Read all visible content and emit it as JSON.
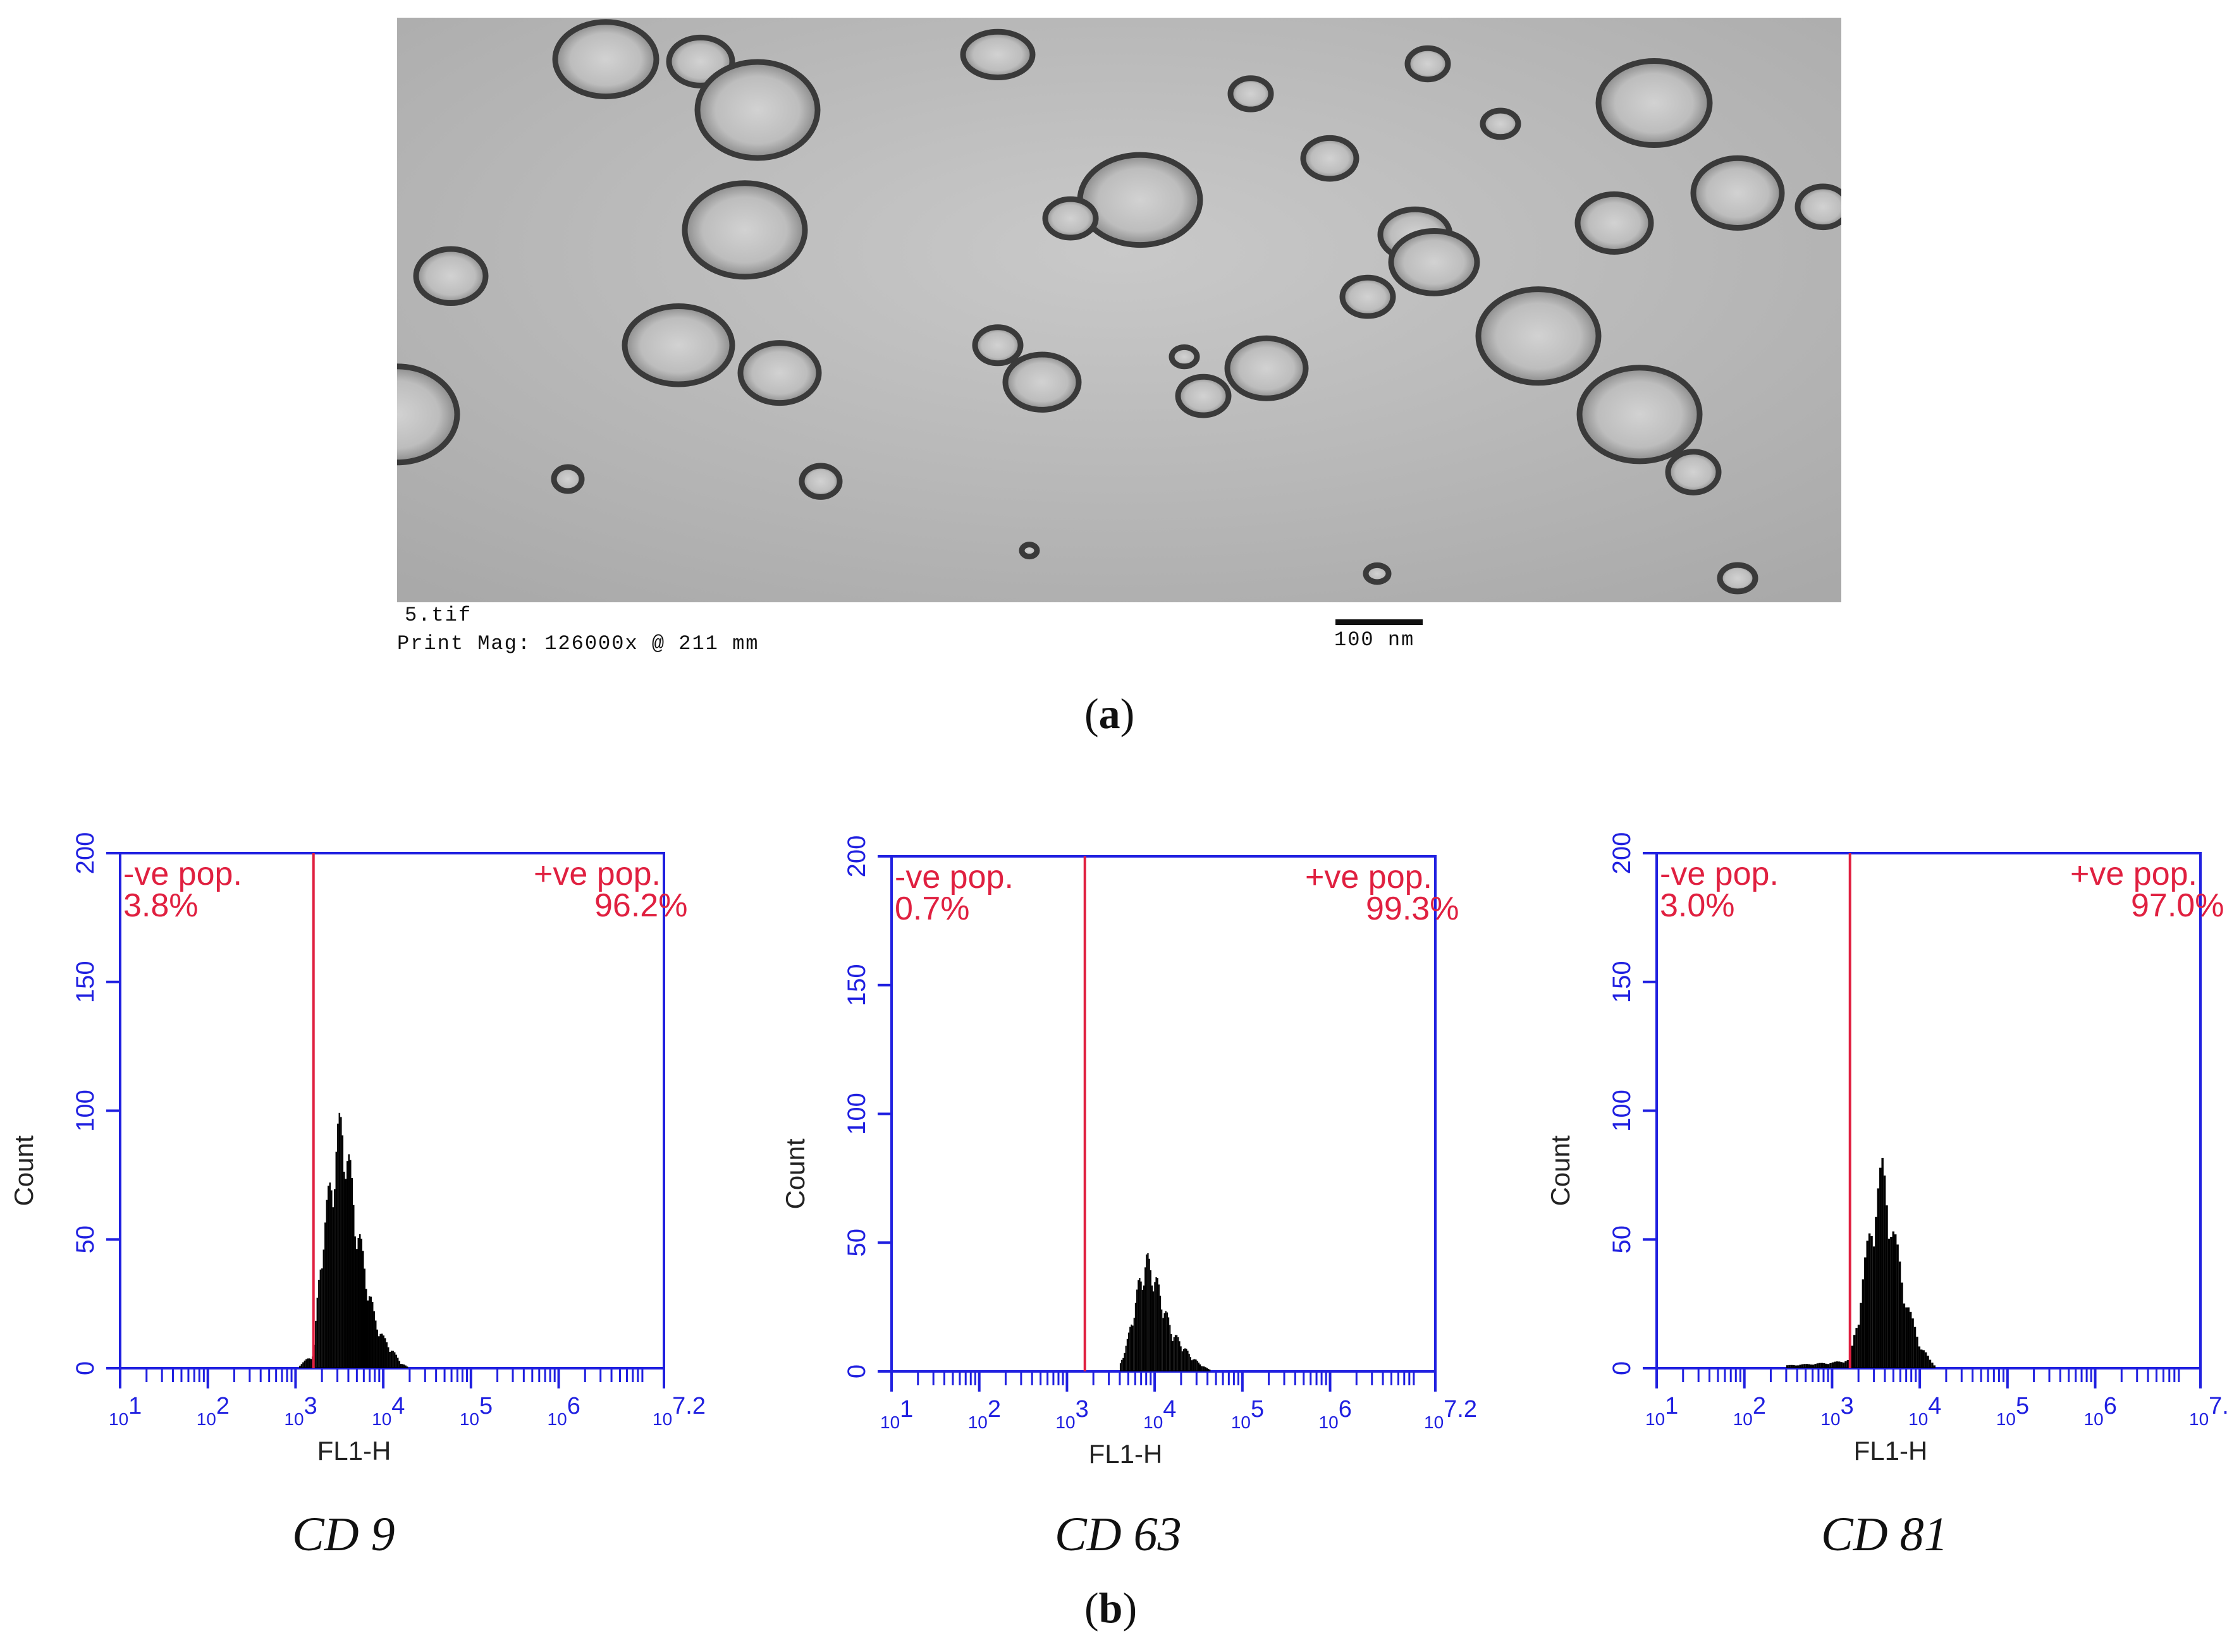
{
  "figure": {
    "panel_a_label": "a",
    "panel_b_label": "b"
  },
  "micrograph": {
    "file_label": "5.tif",
    "magnification": "Print Mag: 126000x @ 211 mm",
    "scale_bar": "100 nm"
  },
  "colors": {
    "axis": "#2020e0",
    "gate": "#e02040",
    "bars": "#000000"
  },
  "chart_data": [
    {
      "type": "bar",
      "title": "CD 9",
      "xlabel": "FL1-H",
      "ylabel": "Count",
      "x_scale": "log",
      "xlim": [
        10,
        15848931
      ],
      "x_ticks": [
        {
          "base": "10",
          "exp": "1"
        },
        {
          "base": "10",
          "exp": "2"
        },
        {
          "base": "10",
          "exp": "3"
        },
        {
          "base": "10",
          "exp": "4"
        },
        {
          "base": "10",
          "exp": "5"
        },
        {
          "base": "10",
          "exp": "6"
        },
        {
          "base": "10",
          "exp": "7.2"
        }
      ],
      "ylim": [
        0,
        200
      ],
      "y_ticks": [
        "0",
        "50",
        "100",
        "150",
        "200"
      ],
      "gate_x": 1600,
      "gates": [
        {
          "label": "-ve pop.",
          "percent": "3.8%"
        },
        {
          "label": "+ve pop.",
          "percent": "96.2%"
        }
      ],
      "histogram_outline": [
        [
          1100,
          1
        ],
        [
          1600,
          5
        ],
        [
          2000,
          45
        ],
        [
          2500,
          65
        ],
        [
          3000,
          82
        ],
        [
          3500,
          88
        ],
        [
          4000,
          74
        ],
        [
          5000,
          52
        ],
        [
          6500,
          32
        ],
        [
          8000,
          18
        ],
        [
          10000,
          11
        ],
        [
          13000,
          6
        ],
        [
          16000,
          2
        ],
        [
          20000,
          0
        ]
      ]
    },
    {
      "type": "bar",
      "title": "CD 63",
      "xlabel": "FL1-H",
      "ylabel": "Count",
      "x_scale": "log",
      "xlim": [
        10,
        15848931
      ],
      "x_ticks": [
        {
          "base": "10",
          "exp": "1"
        },
        {
          "base": "10",
          "exp": "2"
        },
        {
          "base": "10",
          "exp": "3"
        },
        {
          "base": "10",
          "exp": "4"
        },
        {
          "base": "10",
          "exp": "5"
        },
        {
          "base": "10",
          "exp": "6"
        },
        {
          "base": "10",
          "exp": "7.2"
        }
      ],
      "ylim": [
        0,
        200
      ],
      "y_ticks": [
        "0",
        "50",
        "100",
        "150",
        "200"
      ],
      "gate_x": 1600,
      "gates": [
        {
          "label": "-ve pop.",
          "percent": "0.7%"
        },
        {
          "label": "+ve pop.",
          "percent": "99.3%"
        }
      ],
      "histogram_outline": [
        [
          4000,
          2
        ],
        [
          5000,
          12
        ],
        [
          6500,
          30
        ],
        [
          8000,
          40
        ],
        [
          9500,
          36
        ],
        [
          11000,
          30
        ],
        [
          13000,
          22
        ],
        [
          16000,
          14
        ],
        [
          20000,
          10
        ],
        [
          25000,
          6
        ],
        [
          32000,
          3
        ],
        [
          40000,
          1
        ],
        [
          50000,
          0
        ]
      ]
    },
    {
      "type": "bar",
      "title": "CD 81",
      "xlabel": "FL1-H",
      "ylabel": "Count",
      "x_scale": "log",
      "xlim": [
        10,
        15848931
      ],
      "x_ticks": [
        {
          "base": "10",
          "exp": "1"
        },
        {
          "base": "10",
          "exp": "2"
        },
        {
          "base": "10",
          "exp": "3"
        },
        {
          "base": "10",
          "exp": "4"
        },
        {
          "base": "10",
          "exp": "5"
        },
        {
          "base": "10",
          "exp": "6"
        },
        {
          "base": "10",
          "exp": "7.2"
        }
      ],
      "ylim": [
        0,
        200
      ],
      "y_ticks": [
        "0",
        "50",
        "100",
        "150",
        "200"
      ],
      "gate_x": 1600,
      "gates": [
        {
          "label": "-ve pop.",
          "percent": "3.0%"
        },
        {
          "label": "+ve pop.",
          "percent": "97.0%"
        }
      ],
      "histogram_outline": [
        [
          300,
          1
        ],
        [
          1000,
          2
        ],
        [
          1600,
          3
        ],
        [
          2000,
          20
        ],
        [
          2600,
          45
        ],
        [
          3200,
          62
        ],
        [
          3800,
          70
        ],
        [
          4400,
          60
        ],
        [
          5200,
          46
        ],
        [
          6500,
          30
        ],
        [
          8000,
          18
        ],
        [
          10000,
          9
        ],
        [
          13000,
          3
        ],
        [
          16000,
          0
        ]
      ]
    }
  ]
}
